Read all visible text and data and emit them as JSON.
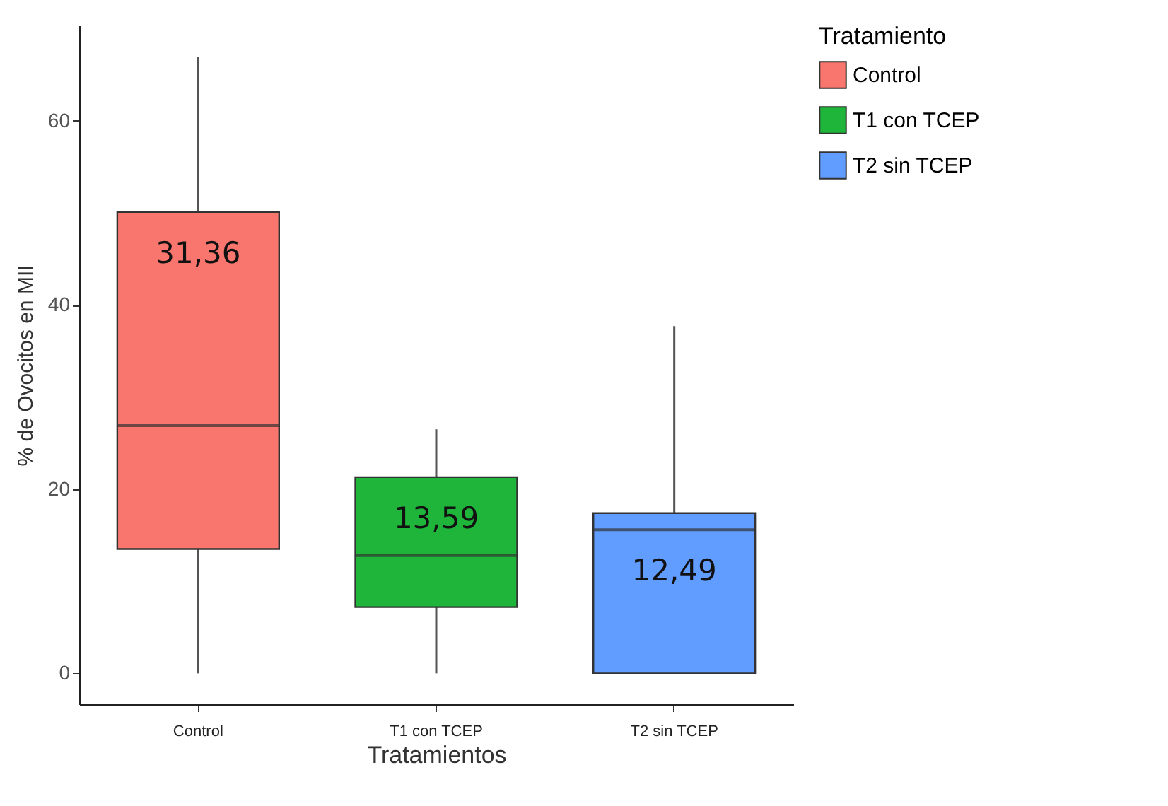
{
  "chart_data": {
    "type": "box",
    "xlabel": "Tratamientos",
    "ylabel": "% de Ovocitos en MII",
    "legend_title": "Tratamiento",
    "categories": [
      "Control",
      "T1 con TCEP",
      "T2 sin TCEP"
    ],
    "series": [
      {
        "name": "Control",
        "color": "#f8766d",
        "boxes": [
          {
            "low": 0,
            "q1": 13.5,
            "median": 26.9,
            "q3": 50.1,
            "high": 66.9
          },
          null,
          null
        ],
        "value_labels": [
          "31,36",
          null,
          null
        ]
      },
      {
        "name": "T1 con TCEP",
        "color": "#1fb53a",
        "boxes": [
          null,
          {
            "low": 0,
            "q1": 7.2,
            "median": 12.8,
            "q3": 21.3,
            "high": 26.5
          },
          null
        ],
        "value_labels": [
          null,
          "13,59",
          null
        ]
      },
      {
        "name": "T2 sin TCEP",
        "color": "#619cff",
        "boxes": [
          null,
          null,
          {
            "low": 0,
            "q1": 0,
            "median": 15.6,
            "q3": 17.4,
            "high": 37.7
          }
        ],
        "value_labels": [
          null,
          null,
          "12,49"
        ]
      }
    ],
    "ylim": [
      -3.35,
      70.35
    ],
    "yticks": [
      0,
      20,
      40,
      60
    ],
    "legend": "right"
  }
}
